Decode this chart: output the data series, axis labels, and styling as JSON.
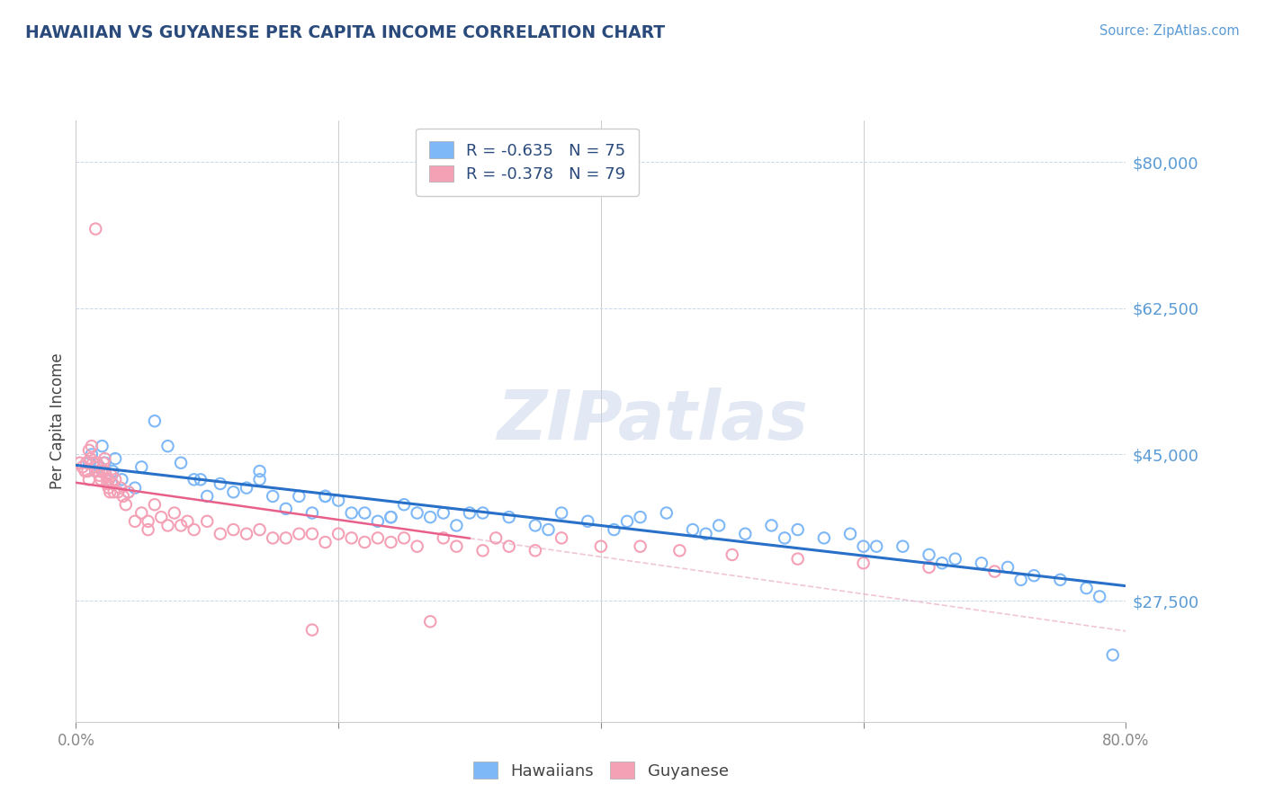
{
  "title": "HAWAIIAN VS GUYANESE PER CAPITA INCOME CORRELATION CHART",
  "source_text": "Source: ZipAtlas.com",
  "ylabel": "Per Capita Income",
  "xlim": [
    0.0,
    80.0
  ],
  "ylim": [
    13000,
    85000
  ],
  "yticks": [
    27500,
    45000,
    62500,
    80000
  ],
  "ytick_labels": [
    "$27,500",
    "$45,000",
    "$62,500",
    "$80,000"
  ],
  "xtick_positions": [
    0,
    20,
    40,
    60,
    80
  ],
  "xtick_labels_show": [
    "0.0%",
    "",
    "",
    "",
    "80.0%"
  ],
  "hawaiian_color": "#7eb8f7",
  "guyanese_color": "#f4a0b5",
  "title_color": "#3a5a8c",
  "watermark": "ZIPatlas",
  "hawaiian_R": -0.635,
  "hawaiian_N": 75,
  "guyanese_R": -0.378,
  "guyanese_N": 79,
  "hawaiian_x": [
    1.0,
    1.2,
    1.5,
    1.8,
    2.0,
    2.2,
    2.5,
    2.8,
    3.0,
    3.5,
    4.0,
    4.5,
    5.0,
    6.0,
    7.0,
    8.0,
    9.0,
    10.0,
    11.0,
    12.0,
    13.0,
    14.0,
    15.0,
    16.0,
    17.0,
    18.0,
    19.0,
    20.0,
    21.0,
    22.0,
    23.0,
    24.0,
    25.0,
    26.0,
    27.0,
    29.0,
    31.0,
    33.0,
    35.0,
    37.0,
    39.0,
    41.0,
    43.0,
    45.0,
    47.0,
    49.0,
    51.0,
    53.0,
    55.0,
    57.0,
    59.0,
    61.0,
    63.0,
    65.0,
    67.0,
    69.0,
    71.0,
    73.0,
    75.0,
    77.0,
    79.0,
    14.0,
    19.0,
    24.0,
    30.0,
    36.0,
    42.0,
    48.0,
    54.0,
    60.0,
    66.0,
    72.0,
    78.0,
    9.5,
    28.0
  ],
  "hawaiian_y": [
    44000,
    45000,
    43000,
    43500,
    46000,
    44000,
    42000,
    43000,
    44500,
    42000,
    40500,
    41000,
    43500,
    49000,
    46000,
    44000,
    42000,
    40000,
    41500,
    40500,
    41000,
    43000,
    40000,
    38500,
    40000,
    38000,
    40000,
    39500,
    38000,
    38000,
    37000,
    37500,
    39000,
    38000,
    37500,
    36500,
    38000,
    37500,
    36500,
    38000,
    37000,
    36000,
    37500,
    38000,
    36000,
    36500,
    35500,
    36500,
    36000,
    35000,
    35500,
    34000,
    34000,
    33000,
    32500,
    32000,
    31500,
    30500,
    30000,
    29000,
    21000,
    42000,
    40000,
    37500,
    38000,
    36000,
    37000,
    35500,
    35000,
    34000,
    32000,
    30000,
    28000,
    42000,
    38000
  ],
  "guyanese_x": [
    0.3,
    0.5,
    0.7,
    0.8,
    0.9,
    1.0,
    1.1,
    1.2,
    1.3,
    1.4,
    1.5,
    1.6,
    1.7,
    1.8,
    1.9,
    2.0,
    2.1,
    2.2,
    2.3,
    2.4,
    2.5,
    2.6,
    2.7,
    2.8,
    2.9,
    3.0,
    3.2,
    3.4,
    3.6,
    3.8,
    4.0,
    4.5,
    5.0,
    5.5,
    6.0,
    6.5,
    7.0,
    7.5,
    8.0,
    8.5,
    9.0,
    10.0,
    11.0,
    12.0,
    13.0,
    14.0,
    15.0,
    16.0,
    17.0,
    18.0,
    19.0,
    20.0,
    21.0,
    22.0,
    23.0,
    24.0,
    25.0,
    26.0,
    27.0,
    28.0,
    29.0,
    31.0,
    33.0,
    35.0,
    37.0,
    40.0,
    43.0,
    46.0,
    50.0,
    55.0,
    60.0,
    65.0,
    70.0,
    5.5,
    2.2,
    1.0,
    2.5,
    18.0,
    32.0
  ],
  "guyanese_y": [
    44000,
    43500,
    43000,
    44000,
    43000,
    45500,
    44500,
    46000,
    44000,
    43500,
    72000,
    44000,
    43000,
    42500,
    42000,
    43000,
    44000,
    44500,
    42500,
    41500,
    42000,
    40500,
    42500,
    41500,
    40500,
    42000,
    40500,
    41000,
    40000,
    39000,
    40500,
    37000,
    38000,
    37000,
    39000,
    37500,
    36500,
    38000,
    36500,
    37000,
    36000,
    37000,
    35500,
    36000,
    35500,
    36000,
    35000,
    35000,
    35500,
    35500,
    34500,
    35500,
    35000,
    34500,
    35000,
    34500,
    35000,
    34000,
    25000,
    35000,
    34000,
    33500,
    34000,
    33500,
    35000,
    34000,
    34000,
    33500,
    33000,
    32500,
    32000,
    31500,
    31000,
    36000,
    43000,
    42000,
    41000,
    24000,
    35000
  ]
}
